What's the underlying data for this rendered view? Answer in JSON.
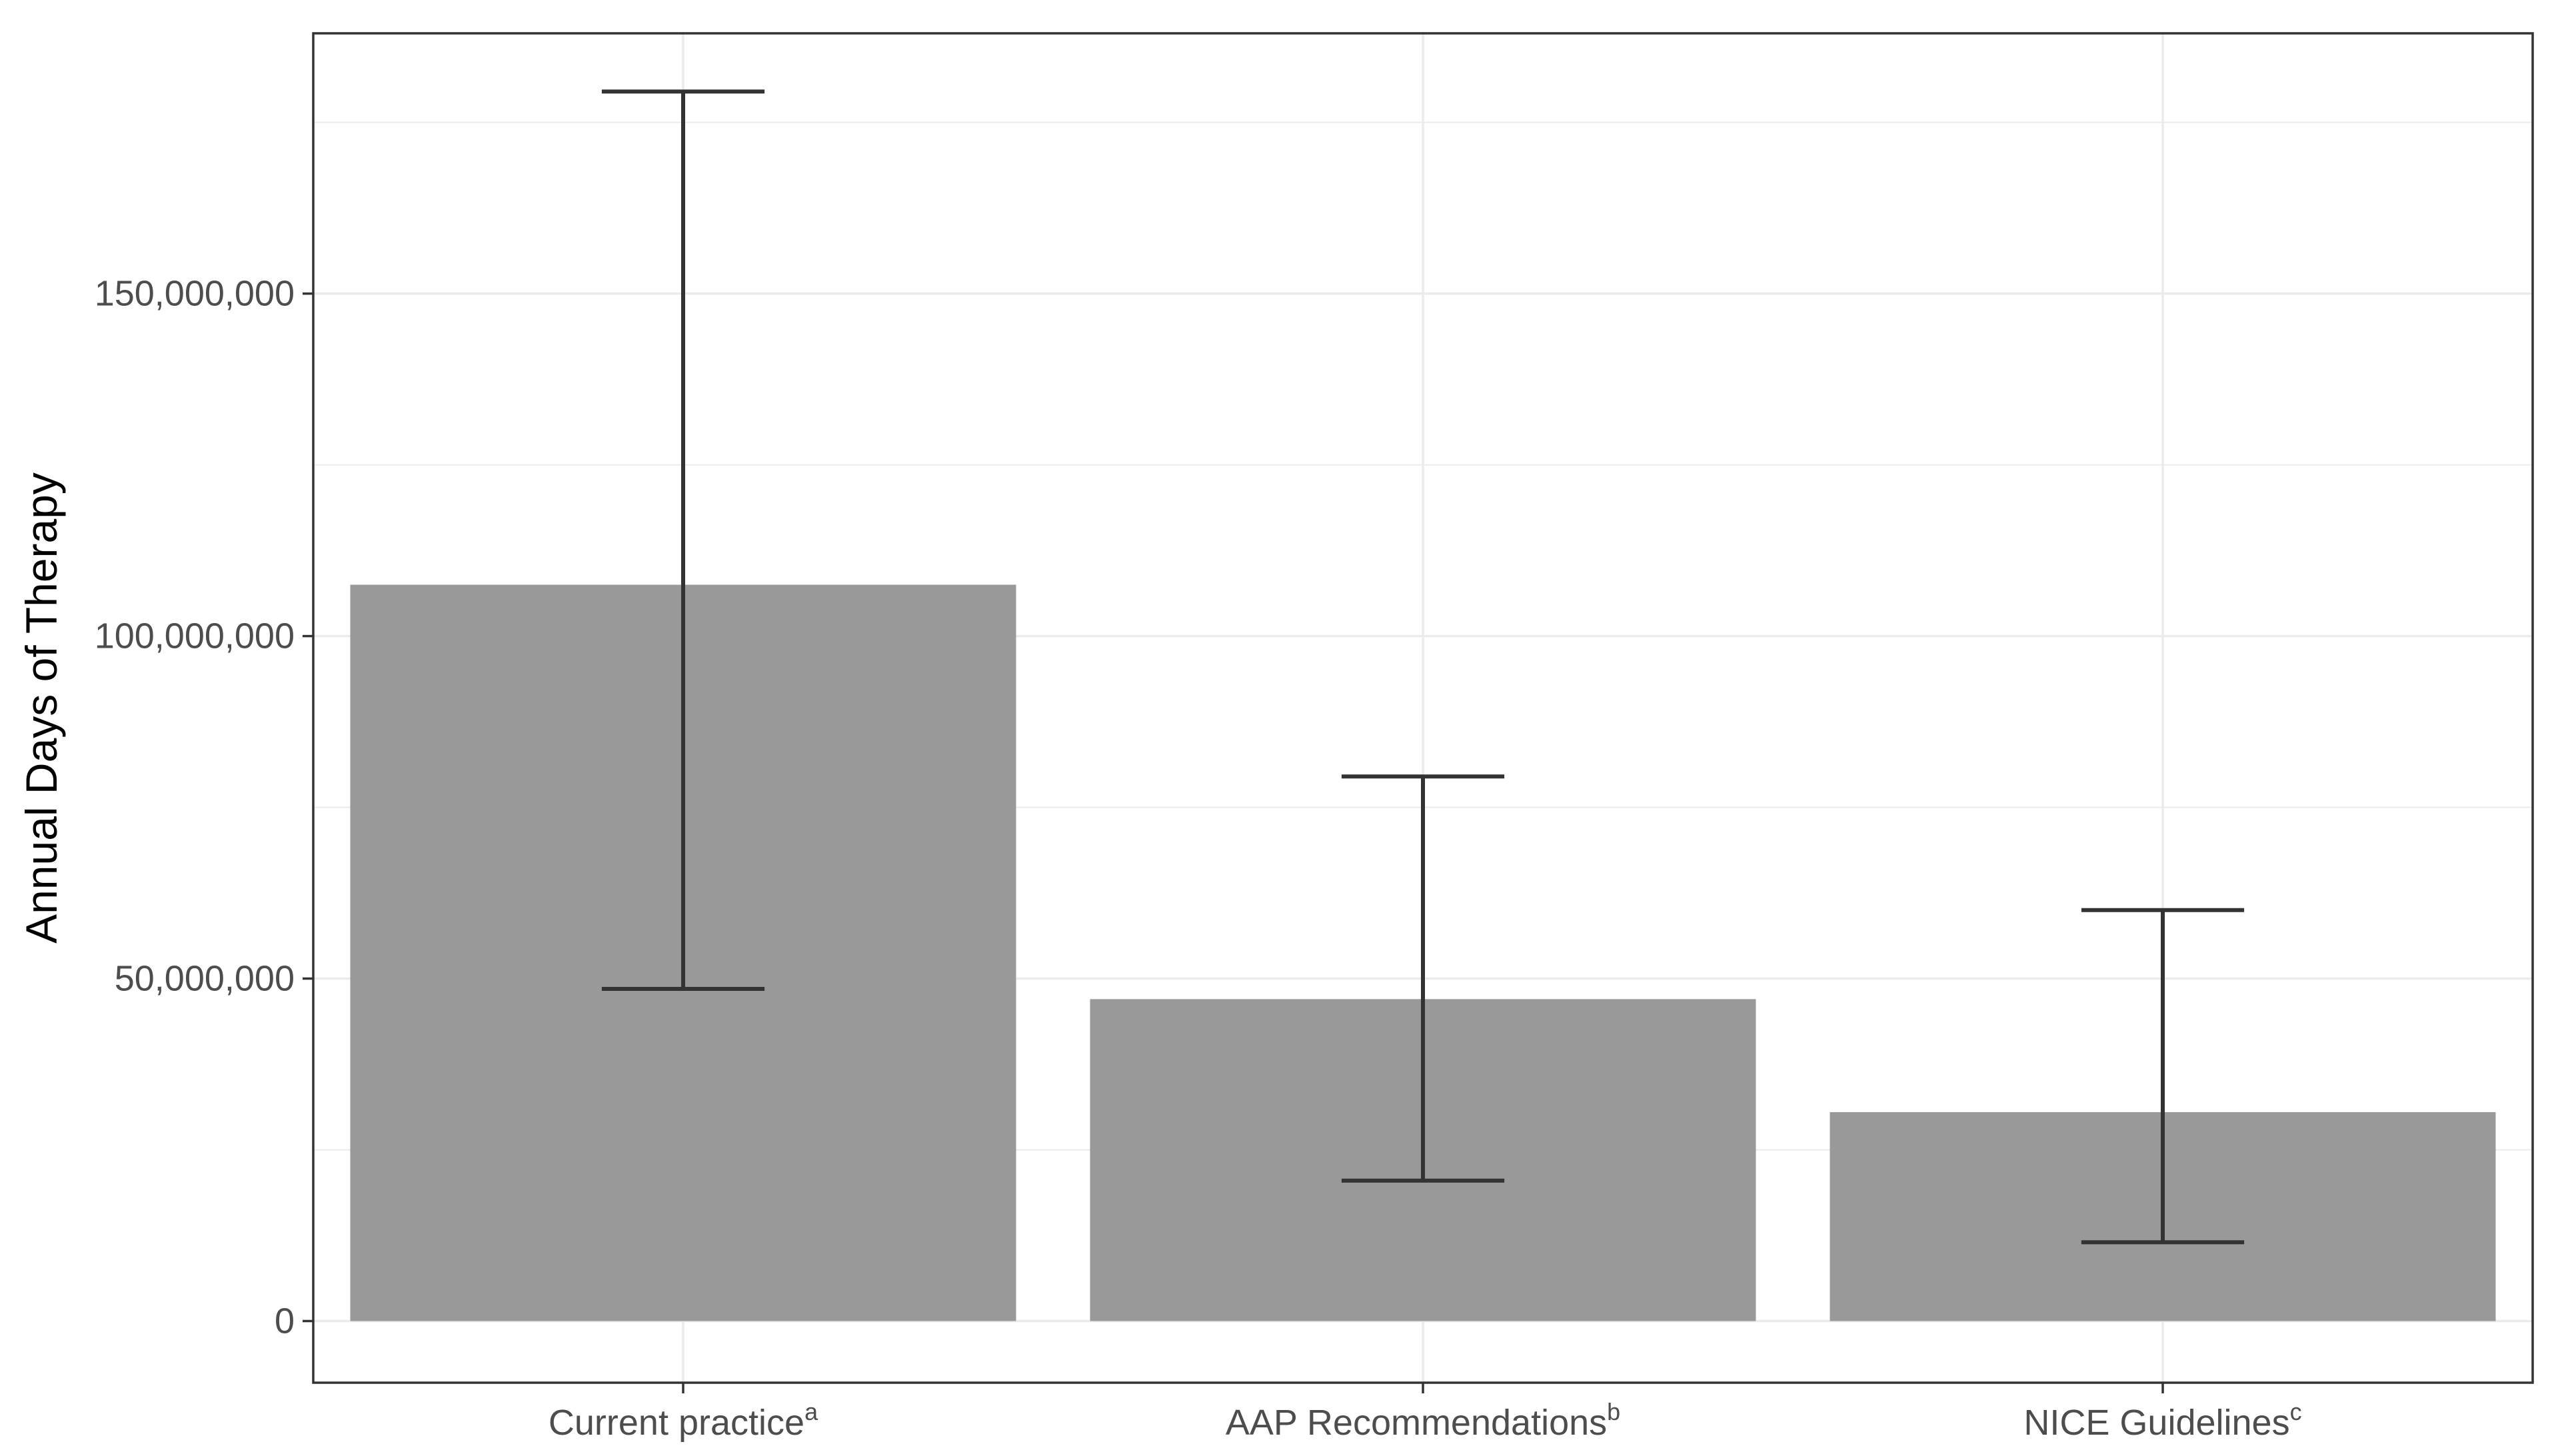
{
  "chart_data": {
    "type": "bar",
    "title": "",
    "xlabel": "",
    "ylabel": "Annual Days of Therapy",
    "ylim": [
      -9000000,
      188000000
    ],
    "grid": true,
    "categories": [
      {
        "label": "Current practice",
        "superscript": "a"
      },
      {
        "label": "AAP Recommendations",
        "superscript": "b"
      },
      {
        "label": "NICE Guidelines",
        "superscript": "c"
      }
    ],
    "values": [
      107500000,
      47000000,
      30500000
    ],
    "error_low": [
      48500000,
      20500000,
      11500000
    ],
    "error_high": [
      179500000,
      79500000,
      60000000
    ],
    "y_ticks": [
      {
        "value": 0,
        "label": "0"
      },
      {
        "value": 50000000,
        "label": "50,000,000"
      },
      {
        "value": 100000000,
        "label": "100,000,000"
      },
      {
        "value": 150000000,
        "label": "150,000,000"
      }
    ],
    "y_minor_ticks": [
      25000000,
      75000000,
      125000000,
      175000000
    ],
    "colors": {
      "bar": "#999999",
      "error_bar": "#333333",
      "grid": "#ebebeb",
      "axis_text": "#4d4d4d",
      "axis_title": "#000000",
      "panel_border": "#333333"
    }
  }
}
